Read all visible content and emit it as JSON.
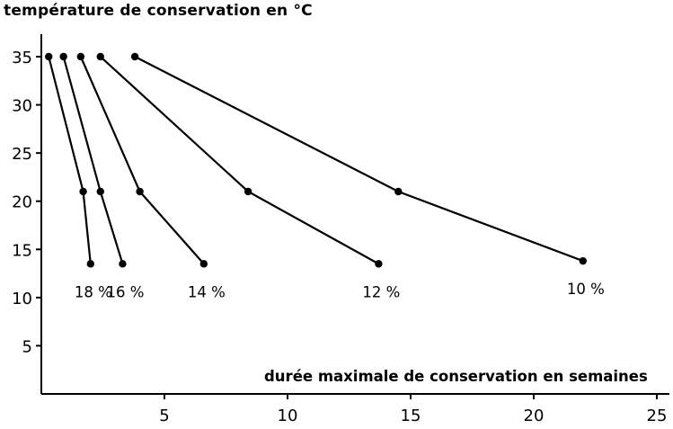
{
  "chart_data": {
    "type": "line",
    "title": "",
    "ylabel": "température de conservation en °C",
    "xlabel": "durée maximale de conservation en semaines",
    "xlim": [
      0,
      25
    ],
    "ylim": [
      0,
      37
    ],
    "xticks": [
      5,
      10,
      15,
      20,
      25
    ],
    "yticks": [
      5,
      10,
      15,
      20,
      25,
      30,
      35
    ],
    "grid": false,
    "series": [
      {
        "name": "18 %",
        "points": [
          [
            0.3,
            35
          ],
          [
            1.7,
            21
          ],
          [
            2.0,
            13.5
          ]
        ]
      },
      {
        "name": "16 %",
        "points": [
          [
            0.9,
            35
          ],
          [
            2.4,
            21
          ],
          [
            3.3,
            13.5
          ]
        ]
      },
      {
        "name": "14 %",
        "points": [
          [
            1.6,
            35
          ],
          [
            4.0,
            21
          ],
          [
            6.6,
            13.5
          ]
        ]
      },
      {
        "name": "12 %",
        "points": [
          [
            2.4,
            35
          ],
          [
            8.4,
            21
          ],
          [
            13.7,
            13.5
          ]
        ]
      },
      {
        "name": "10 %",
        "points": [
          [
            3.8,
            35
          ],
          [
            14.5,
            21
          ],
          [
            22.0,
            13.8
          ]
        ]
      }
    ]
  }
}
